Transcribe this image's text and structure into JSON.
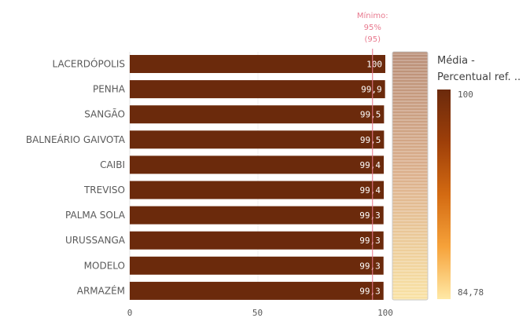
{
  "chart_data": {
    "type": "bar",
    "orientation": "horizontal",
    "categories": [
      "LACERDÓPOLIS",
      "PENHA",
      "SANGÃO",
      "BALNEÁRIO GAIVOTA",
      "CAIBI",
      "TREVISO",
      "PALMA SOLA",
      "URUSSANGA",
      "MODELO",
      "ARMAZÉM"
    ],
    "values": [
      100,
      99.9,
      99.5,
      99.5,
      99.4,
      99.4,
      99.3,
      99.3,
      99.3,
      99.3
    ],
    "data_labels": [
      "100",
      "99,9",
      "99,5",
      "99,5",
      "99,4",
      "99,4",
      "99,3",
      "99,3",
      "99,3",
      "99,3"
    ],
    "xlim": [
      0,
      100
    ],
    "x_ticks": [
      0,
      50,
      100
    ],
    "x_tick_labels": [
      "0",
      "50",
      "100"
    ],
    "bar_color": "#6b2a0c",
    "reference_line": {
      "value": 95,
      "label_lines": [
        "Mínimo:",
        "95%",
        "(95)"
      ],
      "color": "#e8798e"
    },
    "legend": {
      "title_lines": [
        "Média -",
        "Percentual ref. .."
      ],
      "max_label": "100",
      "min_label": "84,78",
      "max_value": 100,
      "min_value": 84.78,
      "colors": [
        "#6b2a0c",
        "#9e3f09",
        "#d36a12",
        "#f6a23a",
        "#ffe9a6"
      ]
    },
    "scrollbar": true
  }
}
